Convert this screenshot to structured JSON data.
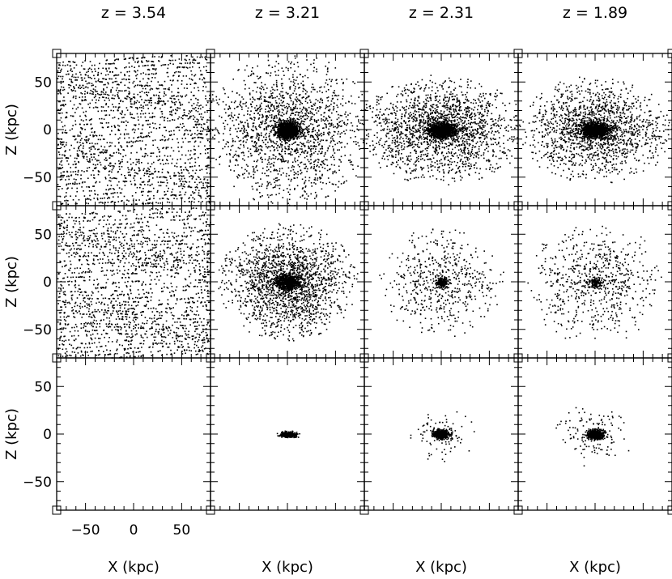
{
  "chart_data": {
    "type": "scatter",
    "title": "",
    "grid": false,
    "legend": "none",
    "columns": [
      {
        "title": "z = 3.54",
        "xlabel": "X (kpc)"
      },
      {
        "title": "z = 3.21",
        "xlabel": "X (kpc)"
      },
      {
        "title": "z = 2.31",
        "xlabel": "X (kpc)"
      },
      {
        "title": "z = 1.89",
        "xlabel": "X (kpc)"
      }
    ],
    "rows": [
      {
        "ylabel": "Z (kpc)"
      },
      {
        "ylabel": "Z (kpc)"
      },
      {
        "ylabel": "Z (kpc)"
      }
    ],
    "xlim": [
      -80,
      80
    ],
    "ylim": [
      -80,
      80
    ],
    "x_ticks": [
      {
        "value": -50,
        "label": "−50"
      },
      {
        "value": 0,
        "label": "0"
      },
      {
        "value": 50,
        "label": "50"
      }
    ],
    "y_ticks": [
      {
        "value": -50,
        "label": "−50"
      },
      {
        "value": 0,
        "label": "0"
      },
      {
        "value": 50,
        "label": "50"
      }
    ],
    "panels": [
      {
        "row": 0,
        "col": 0,
        "kind": "grid",
        "n": 2000,
        "core_sigma": 0
      },
      {
        "row": 0,
        "col": 1,
        "kind": "halo",
        "n": 1700,
        "core_n": 1400,
        "core_sx": 5,
        "core_sz": 4,
        "halo_scale": 55,
        "flatten": 0.9
      },
      {
        "row": 0,
        "col": 2,
        "kind": "halo",
        "n": 1800,
        "core_n": 1100,
        "core_sx": 7,
        "core_sz": 4,
        "halo_scale": 55,
        "flatten": 0.65
      },
      {
        "row": 0,
        "col": 3,
        "kind": "halo",
        "n": 1500,
        "core_n": 1100,
        "core_sx": 7,
        "core_sz": 4,
        "halo_scale": 50,
        "flatten": 0.7
      },
      {
        "row": 1,
        "col": 0,
        "kind": "grid",
        "n": 2000,
        "core_sigma": 0
      },
      {
        "row": 1,
        "col": 1,
        "kind": "halo",
        "n": 1800,
        "core_n": 650,
        "core_sx": 6,
        "core_sz": 4,
        "halo_scale": 45,
        "flatten": 0.85
      },
      {
        "row": 1,
        "col": 2,
        "kind": "halo",
        "n": 550,
        "core_n": 160,
        "core_sx": 3,
        "core_sz": 3,
        "halo_scale": 40,
        "flatten": 0.9
      },
      {
        "row": 1,
        "col": 3,
        "kind": "halo",
        "n": 650,
        "core_n": 120,
        "core_sx": 4,
        "core_sz": 3,
        "halo_scale": 45,
        "flatten": 0.9
      },
      {
        "row": 2,
        "col": 0,
        "kind": "empty",
        "n": 0
      },
      {
        "row": 2,
        "col": 1,
        "kind": "disk",
        "n": 0,
        "core_n": 350,
        "core_sx": 4,
        "core_sz": 1.3,
        "halo_scale": 0,
        "flatten": 1
      },
      {
        "row": 2,
        "col": 2,
        "kind": "disk",
        "n": 90,
        "core_n": 500,
        "core_sx": 4,
        "core_sz": 2.2,
        "halo_scale": 22,
        "flatten": 0.8
      },
      {
        "row": 2,
        "col": 3,
        "kind": "disk",
        "n": 130,
        "core_n": 550,
        "core_sx": 4,
        "core_sz": 2.5,
        "halo_scale": 28,
        "flatten": 0.8
      }
    ]
  }
}
